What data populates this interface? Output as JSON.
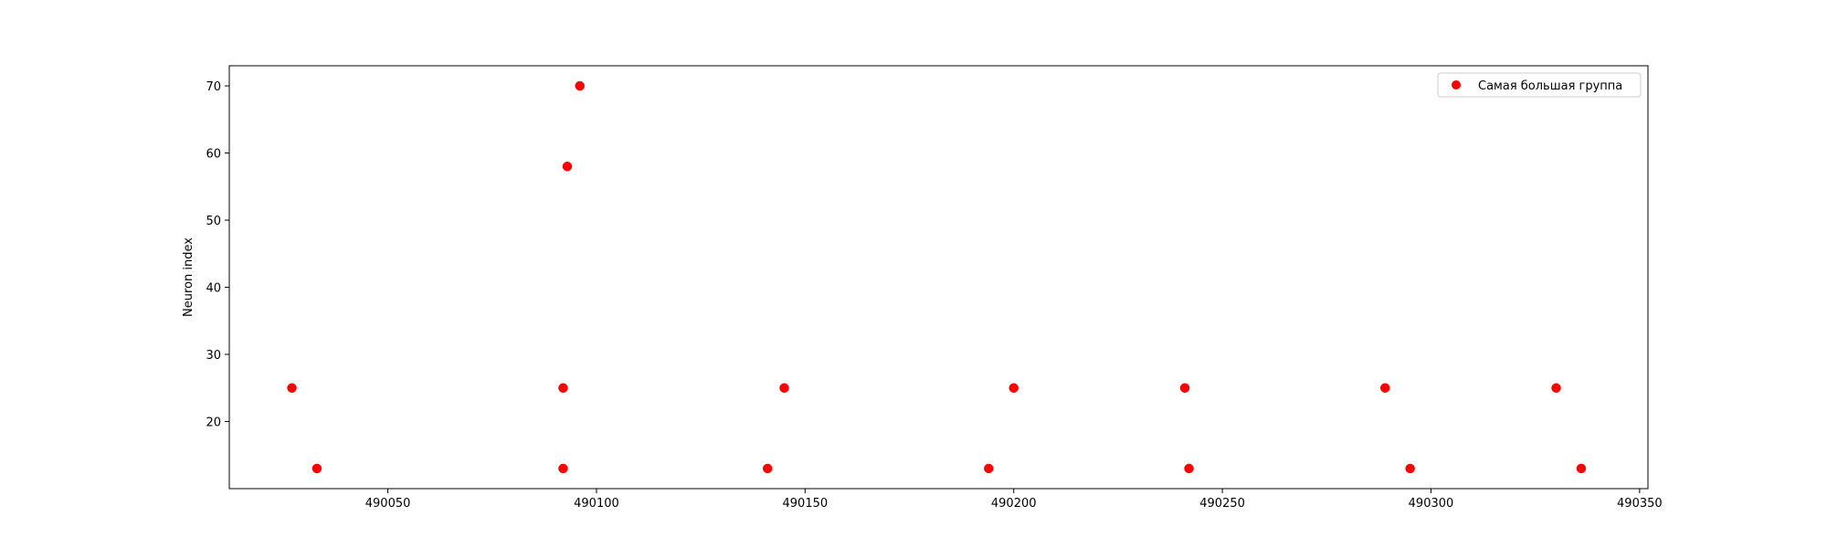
{
  "chart_data": {
    "type": "scatter",
    "title": "",
    "xlabel": "",
    "ylabel": "Neuron index",
    "xlim": [
      490012,
      490352
    ],
    "ylim": [
      10,
      73
    ],
    "xticks": [
      490050,
      490100,
      490150,
      490200,
      490250,
      490300,
      490350
    ],
    "yticks": [
      20,
      30,
      40,
      50,
      60,
      70
    ],
    "grid": false,
    "legend_position": "top-right",
    "series": [
      {
        "name": "Самая большая группа",
        "color": "#ff0000",
        "points": [
          {
            "x": 490027,
            "y": 25
          },
          {
            "x": 490033,
            "y": 13
          },
          {
            "x": 490092,
            "y": 25
          },
          {
            "x": 490092,
            "y": 13
          },
          {
            "x": 490093,
            "y": 58
          },
          {
            "x": 490096,
            "y": 70
          },
          {
            "x": 490141,
            "y": 13
          },
          {
            "x": 490145,
            "y": 25
          },
          {
            "x": 490194,
            "y": 13
          },
          {
            "x": 490200,
            "y": 25
          },
          {
            "x": 490241,
            "y": 25
          },
          {
            "x": 490242,
            "y": 13
          },
          {
            "x": 490289,
            "y": 25
          },
          {
            "x": 490295,
            "y": 13
          },
          {
            "x": 490330,
            "y": 25
          },
          {
            "x": 490336,
            "y": 13
          }
        ]
      }
    ]
  }
}
